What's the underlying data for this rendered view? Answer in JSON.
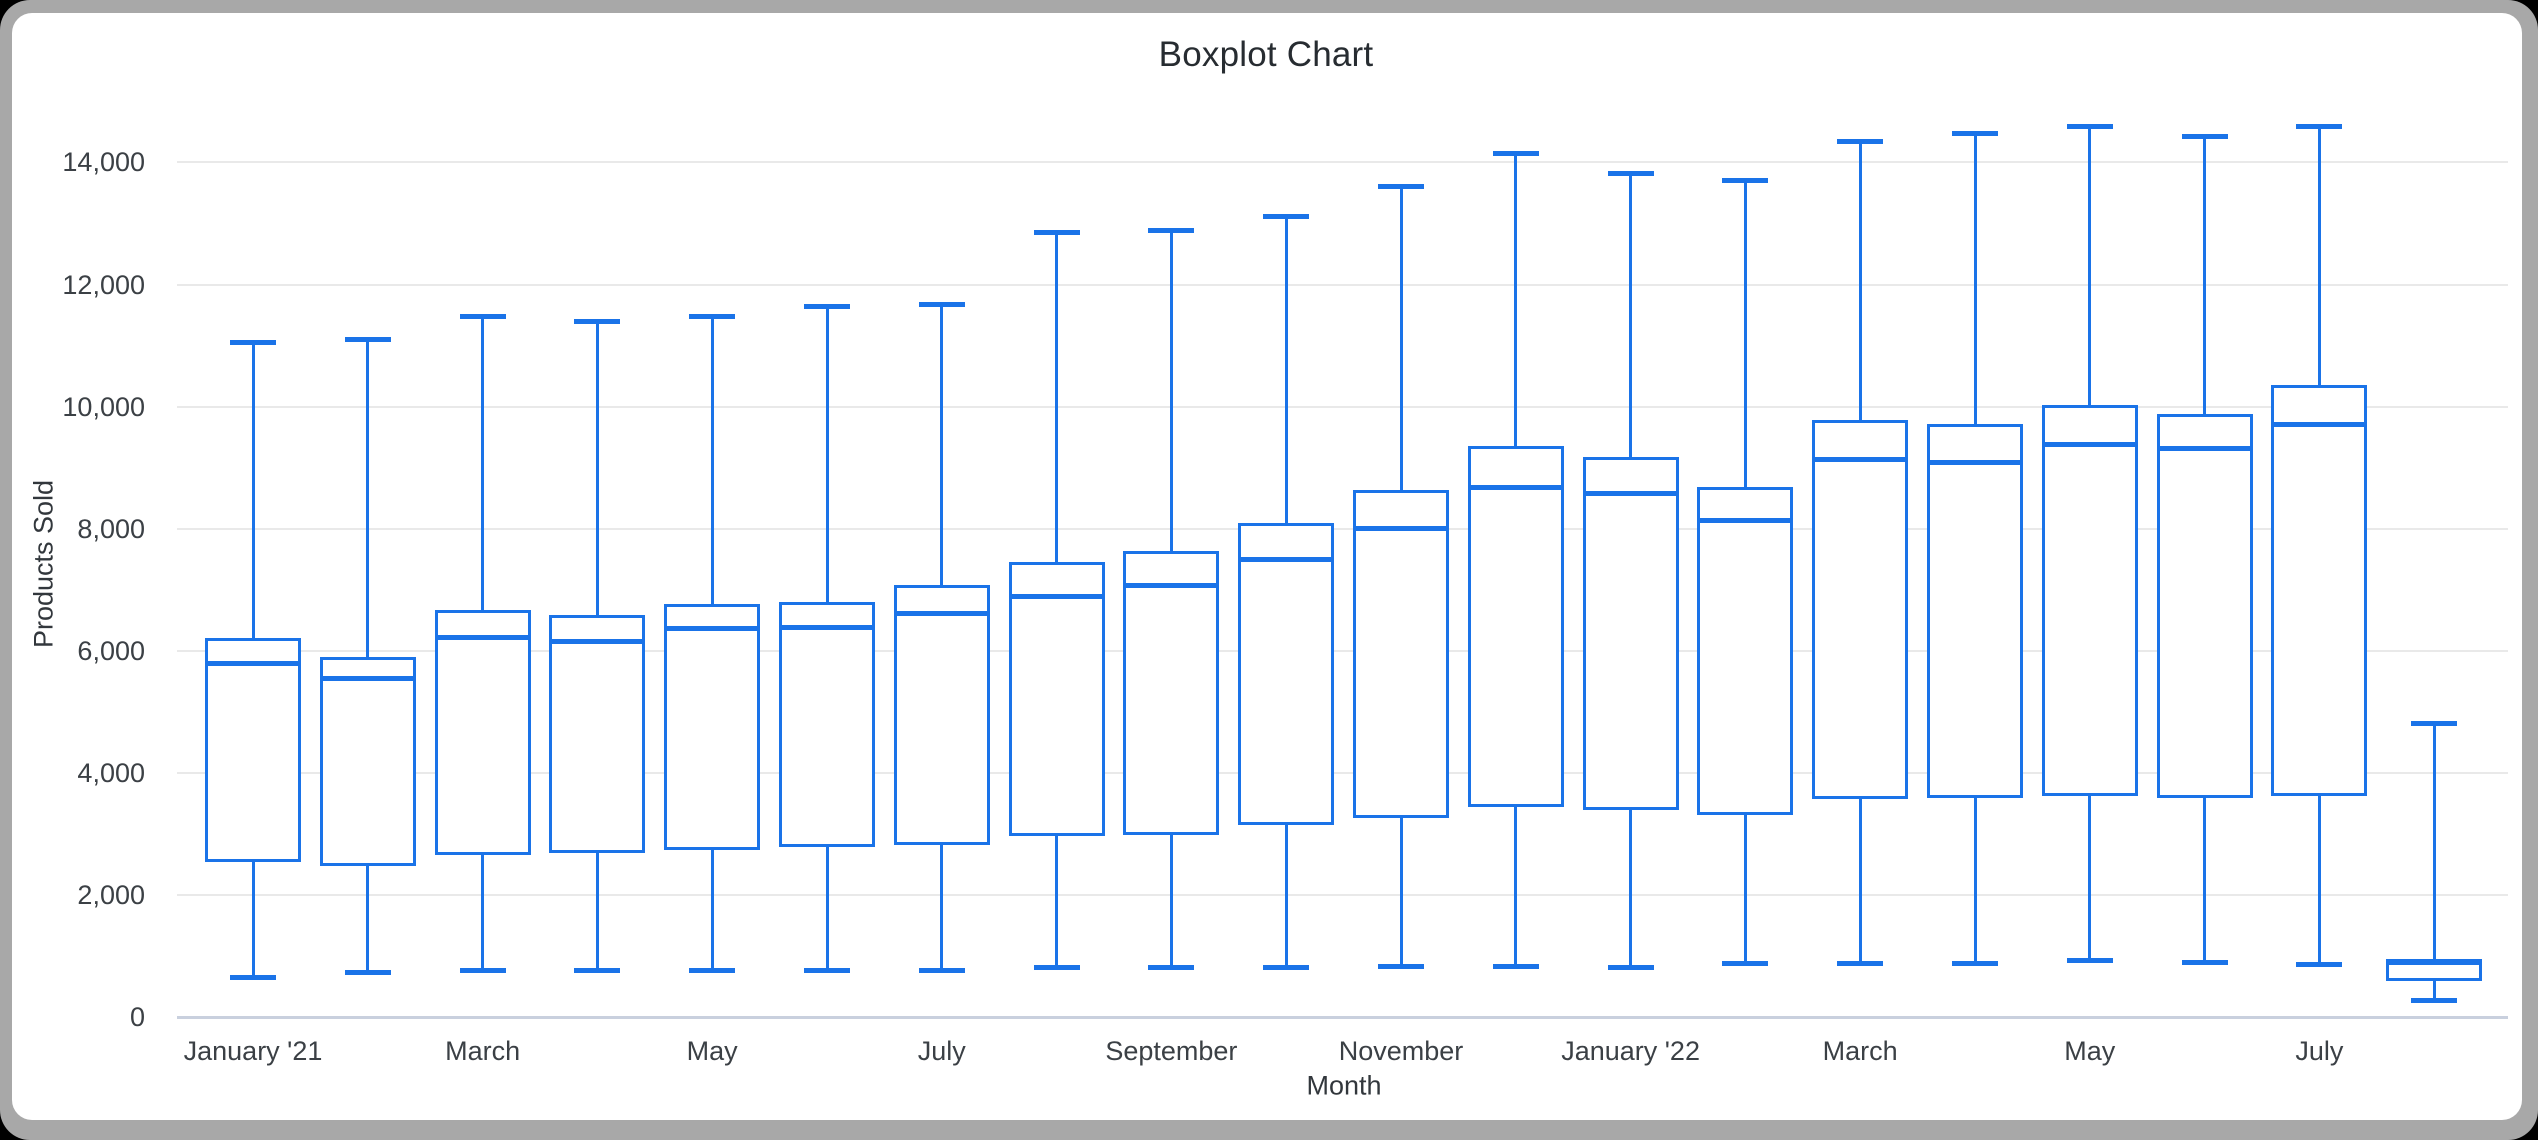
{
  "window": {
    "frame_color": "#a8a8a8",
    "card_color": "#ffffff",
    "outside_color": "#000000"
  },
  "colors": {
    "series": "#1a73e8",
    "gridline": "#e9e9e9",
    "baseline": "#c9d0de",
    "tick_text": "#3b4045",
    "axis_title_text": "#32373c",
    "title_text": "#272c31"
  },
  "chart_data": {
    "type": "boxplot",
    "title": "Boxplot Chart",
    "xlabel": "Month",
    "ylabel": "Products Sold",
    "ylim": [
      0,
      14800
    ],
    "grid": true,
    "y_ticks": [
      {
        "value": 0,
        "label": "0"
      },
      {
        "value": 2000,
        "label": "2,000"
      },
      {
        "value": 4000,
        "label": "4,000"
      },
      {
        "value": 6000,
        "label": "6,000"
      },
      {
        "value": 8000,
        "label": "8,000"
      },
      {
        "value": 10000,
        "label": "10,000"
      },
      {
        "value": 12000,
        "label": "12,000"
      },
      {
        "value": 14000,
        "label": "14,000"
      }
    ],
    "x_ticks": [
      {
        "box_index": 0,
        "label": "January '21"
      },
      {
        "box_index": 2,
        "label": "March"
      },
      {
        "box_index": 4,
        "label": "May"
      },
      {
        "box_index": 6,
        "label": "July"
      },
      {
        "box_index": 8,
        "label": "September"
      },
      {
        "box_index": 10,
        "label": "November"
      },
      {
        "box_index": 12,
        "label": "January '22"
      },
      {
        "box_index": 14,
        "label": "March"
      },
      {
        "box_index": 16,
        "label": "May"
      },
      {
        "box_index": 18,
        "label": "July"
      }
    ],
    "points": [
      {
        "min": 650,
        "q1": 2550,
        "median": 5800,
        "q3": 6220,
        "max": 11050
      },
      {
        "min": 740,
        "q1": 2480,
        "median": 5550,
        "q3": 5900,
        "max": 11100
      },
      {
        "min": 760,
        "q1": 2660,
        "median": 6220,
        "q3": 6670,
        "max": 11480
      },
      {
        "min": 760,
        "q1": 2700,
        "median": 6160,
        "q3": 6590,
        "max": 11400
      },
      {
        "min": 760,
        "q1": 2740,
        "median": 6370,
        "q3": 6770,
        "max": 11480
      },
      {
        "min": 760,
        "q1": 2790,
        "median": 6390,
        "q3": 6800,
        "max": 11640
      },
      {
        "min": 760,
        "q1": 2820,
        "median": 6620,
        "q3": 7080,
        "max": 11680
      },
      {
        "min": 810,
        "q1": 2970,
        "median": 6900,
        "q3": 7450,
        "max": 12850
      },
      {
        "min": 810,
        "q1": 2990,
        "median": 7080,
        "q3": 7630,
        "max": 12880
      },
      {
        "min": 810,
        "q1": 3150,
        "median": 7500,
        "q3": 8100,
        "max": 13120
      },
      {
        "min": 830,
        "q1": 3270,
        "median": 8000,
        "q3": 8630,
        "max": 13600
      },
      {
        "min": 840,
        "q1": 3450,
        "median": 8680,
        "q3": 9350,
        "max": 14150
      },
      {
        "min": 820,
        "q1": 3390,
        "median": 8580,
        "q3": 9180,
        "max": 13820
      },
      {
        "min": 880,
        "q1": 3320,
        "median": 8130,
        "q3": 8680,
        "max": 13700
      },
      {
        "min": 880,
        "q1": 3570,
        "median": 9130,
        "q3": 9780,
        "max": 14350
      },
      {
        "min": 880,
        "q1": 3590,
        "median": 9080,
        "q3": 9710,
        "max": 14480
      },
      {
        "min": 930,
        "q1": 3620,
        "median": 9380,
        "q3": 10030,
        "max": 14580
      },
      {
        "min": 900,
        "q1": 3590,
        "median": 9310,
        "q3": 9880,
        "max": 14420
      },
      {
        "min": 860,
        "q1": 3620,
        "median": 9710,
        "q3": 10360,
        "max": 14580
      },
      {
        "min": 270,
        "q1": 600,
        "median": 900,
        "q3": 950,
        "max": 4820
      }
    ]
  }
}
